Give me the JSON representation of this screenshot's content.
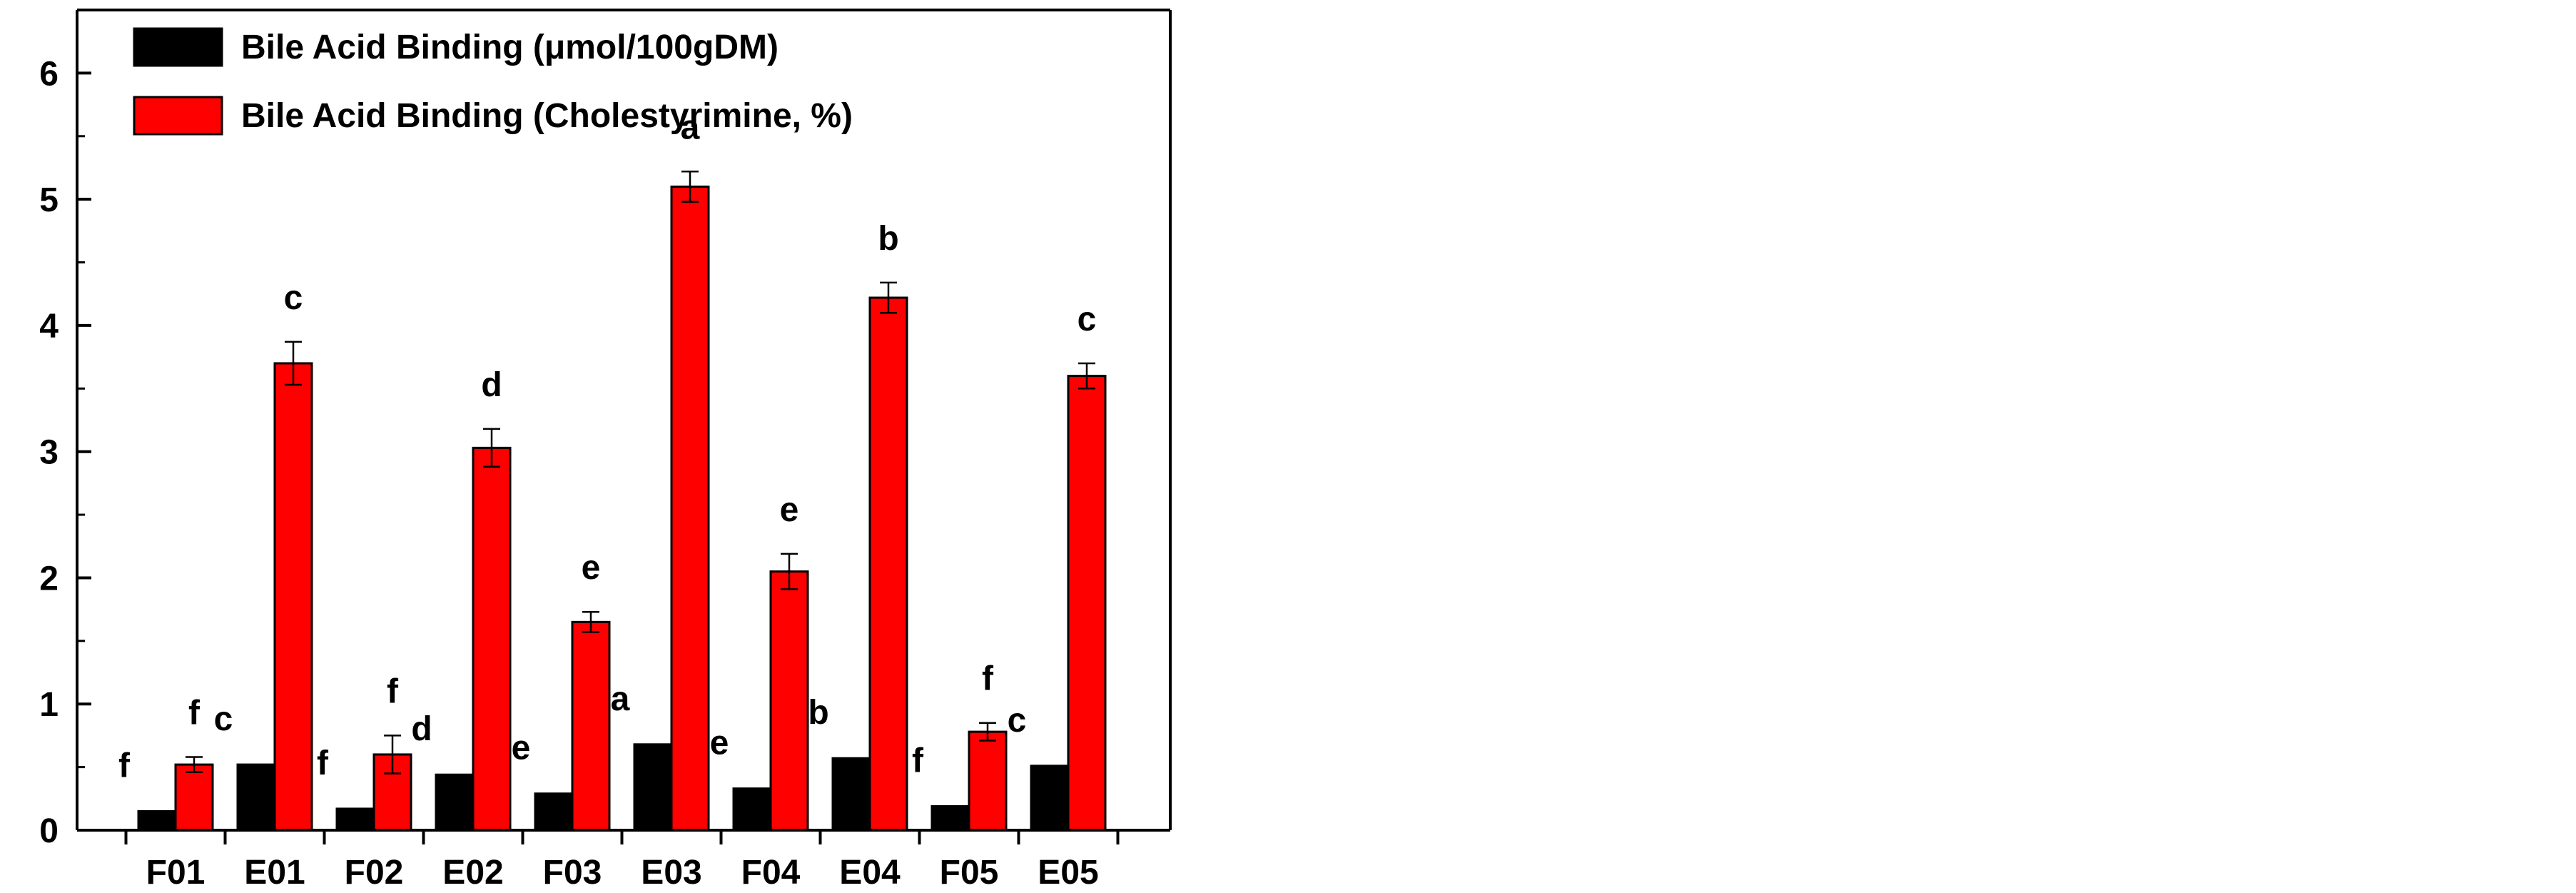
{
  "chart_data": {
    "type": "bar",
    "title": "",
    "xlabel": "",
    "ylabel": "",
    "ylim": [
      0,
      6.5
    ],
    "yticks": [
      0,
      1,
      2,
      3,
      4,
      5,
      6
    ],
    "grid": false,
    "legend_position": "top-left",
    "categories": [
      "F01",
      "E01",
      "F02",
      "E02",
      "F03",
      "E03",
      "F04",
      "E04",
      "F05",
      "E05"
    ],
    "series": [
      {
        "name": "Bile Acid Binding (μmol/100gDM)",
        "color": "#000000",
        "values": [
          0.15,
          0.52,
          0.17,
          0.44,
          0.29,
          0.68,
          0.33,
          0.57,
          0.19,
          0.51
        ],
        "errors": [
          0.0,
          0.0,
          0.0,
          0.0,
          0.0,
          0.0,
          0.0,
          0.0,
          0.0,
          0.0
        ],
        "labels": [
          "f",
          "c",
          "f",
          "d",
          "e",
          "a",
          "e",
          "b",
          "f",
          "c"
        ]
      },
      {
        "name": "Bile Acid Binding (Cholestyrimine, %)",
        "color": "#ff0000",
        "values": [
          0.52,
          3.7,
          0.6,
          3.03,
          1.65,
          5.1,
          2.05,
          4.22,
          0.78,
          3.6
        ],
        "errors": [
          0.06,
          0.17,
          0.15,
          0.15,
          0.08,
          0.12,
          0.14,
          0.12,
          0.07,
          0.1
        ],
        "labels": [
          "f",
          "c",
          "f",
          "d",
          "e",
          "a",
          "e",
          "b",
          "f",
          "c"
        ]
      }
    ]
  }
}
